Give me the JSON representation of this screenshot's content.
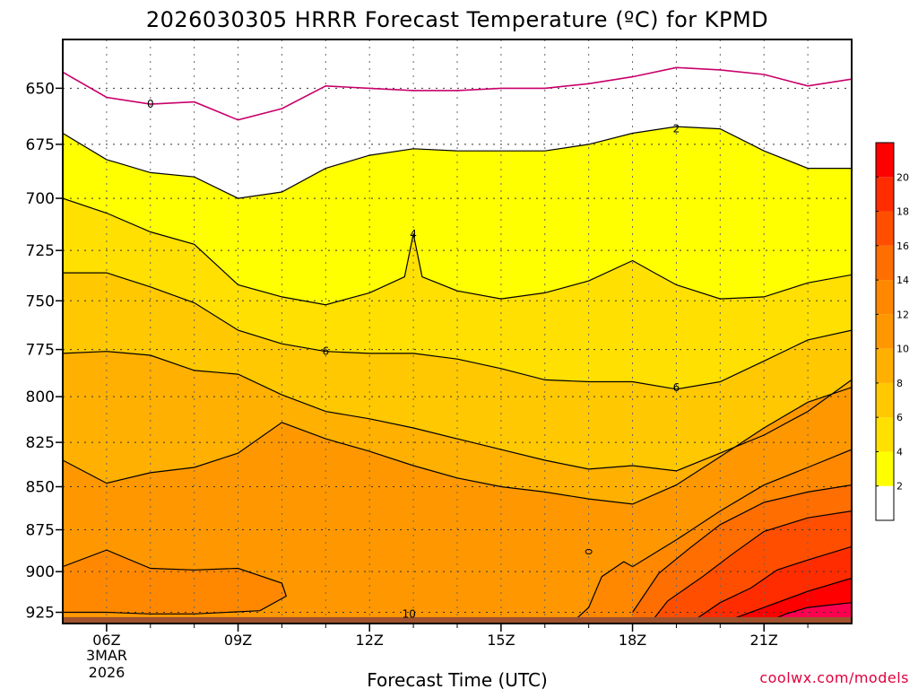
{
  "title": "2026030305 HRRR Forecast Temperature (ºC) for KPMD",
  "xlabel": "Forecast Time (UTC)",
  "credit": "coolwx.com/models",
  "date_label": [
    "3MAR",
    "2026"
  ],
  "colors": {
    "ground": "#a0522d",
    "bands": [
      "#ffffff",
      "#ffff00",
      "#ffe000",
      "#ffc800",
      "#ffb000",
      "#ff9800",
      "#ff8800",
      "#ff6e00",
      "#ff4e00",
      "#ff2c00",
      "#ff0000",
      "#ff0050"
    ],
    "zero_line": "#c8006a",
    "contour": "#000000",
    "grid": "#888888"
  },
  "chart_data": {
    "type": "heatmap",
    "title": "2026030305 HRRR Forecast Temperature (ºC) for KPMD",
    "xlabel": "Forecast Time (UTC)",
    "ylabel": "",
    "x_ticks": [
      {
        "hour": 6,
        "label": "06Z"
      },
      {
        "hour": 9,
        "label": "09Z"
      },
      {
        "hour": 12,
        "label": "12Z"
      },
      {
        "hour": 15,
        "label": "15Z"
      },
      {
        "hour": 18,
        "label": "18Z"
      },
      {
        "hour": 21,
        "label": "21Z"
      }
    ],
    "xlim": [
      5,
      23
    ],
    "y_ticks": [
      650,
      675,
      700,
      725,
      750,
      775,
      800,
      825,
      850,
      875,
      900,
      925
    ],
    "ylim": [
      932,
      629
    ],
    "y_scale": "log",
    "surface_pressure": 928,
    "colorbar": {
      "levels": [
        2,
        4,
        6,
        8,
        10,
        12,
        14,
        16,
        18,
        20
      ],
      "range": [
        0,
        22
      ],
      "placement": "right"
    },
    "grid": true,
    "contour_labels": [
      {
        "value": "0",
        "hour": 7,
        "pressure": 657
      },
      {
        "value": "2",
        "hour": 19,
        "pressure": 668
      },
      {
        "value": "4",
        "hour": 13,
        "pressure": 717
      },
      {
        "value": "6",
        "hour": 11,
        "pressure": 776
      },
      {
        "value": "6",
        "hour": 19,
        "pressure": 795
      },
      {
        "value": "10",
        "hour": 12.9,
        "pressure": 926
      }
    ],
    "isotherms": [
      {
        "value": 0,
        "points": [
          [
            5,
            643
          ],
          [
            6,
            654
          ],
          [
            7,
            657
          ],
          [
            8,
            656
          ],
          [
            9,
            664
          ],
          [
            10,
            659
          ],
          [
            11,
            649
          ],
          [
            12,
            650
          ],
          [
            13,
            651
          ],
          [
            14,
            651
          ],
          [
            15,
            650
          ],
          [
            16,
            650
          ],
          [
            17,
            648
          ],
          [
            18,
            645
          ],
          [
            19,
            641
          ],
          [
            20,
            642
          ],
          [
            21,
            644
          ],
          [
            22,
            649
          ],
          [
            23,
            646
          ]
        ]
      },
      {
        "value": 2,
        "points": [
          [
            5,
            670
          ],
          [
            6,
            682
          ],
          [
            7,
            688
          ],
          [
            8,
            690
          ],
          [
            9,
            700
          ],
          [
            10,
            697
          ],
          [
            11,
            686
          ],
          [
            12,
            680
          ],
          [
            13,
            677
          ],
          [
            14,
            678
          ],
          [
            15,
            678
          ],
          [
            16,
            678
          ],
          [
            17,
            675
          ],
          [
            18,
            670
          ],
          [
            19,
            667
          ],
          [
            20,
            668
          ],
          [
            21,
            678
          ],
          [
            22,
            686
          ],
          [
            23,
            686
          ]
        ]
      },
      {
        "value": 4,
        "points": [
          [
            5,
            700
          ],
          [
            6,
            707
          ],
          [
            7,
            716
          ],
          [
            8,
            722
          ],
          [
            9,
            742
          ],
          [
            10,
            748
          ],
          [
            11,
            752
          ],
          [
            12,
            746
          ],
          [
            12.8,
            738
          ],
          [
            13,
            717
          ],
          [
            13.2,
            738
          ],
          [
            14,
            745
          ],
          [
            15,
            749
          ],
          [
            16,
            746
          ],
          [
            17,
            740
          ],
          [
            18,
            730
          ],
          [
            18.5,
            736
          ],
          [
            19,
            742
          ],
          [
            20,
            749
          ],
          [
            21,
            748
          ],
          [
            22,
            741
          ],
          [
            23,
            737
          ]
        ]
      },
      {
        "value": 6,
        "points": [
          [
            5,
            736
          ],
          [
            6,
            736
          ],
          [
            7,
            743
          ],
          [
            8,
            751
          ],
          [
            9,
            765
          ],
          [
            10,
            772
          ],
          [
            11,
            776
          ],
          [
            12,
            777
          ],
          [
            13,
            777
          ],
          [
            14,
            780
          ],
          [
            15,
            785
          ],
          [
            16,
            791
          ],
          [
            17,
            792
          ],
          [
            18,
            792
          ],
          [
            19,
            796
          ],
          [
            20,
            792
          ],
          [
            21,
            781
          ],
          [
            22,
            770
          ],
          [
            23,
            765
          ]
        ]
      },
      {
        "value": 8,
        "points": [
          [
            5,
            777
          ],
          [
            6,
            776
          ],
          [
            7,
            778
          ],
          [
            8,
            786
          ],
          [
            9,
            788
          ],
          [
            10,
            799
          ],
          [
            11,
            808
          ],
          [
            12,
            812
          ],
          [
            13,
            817
          ],
          [
            14,
            823
          ],
          [
            15,
            829
          ],
          [
            16,
            835
          ],
          [
            17,
            840
          ],
          [
            18,
            838
          ],
          [
            19,
            841
          ],
          [
            20,
            831
          ],
          [
            21,
            821
          ],
          [
            22,
            808
          ],
          [
            23,
            791
          ]
        ]
      },
      {
        "value": 10,
        "points": [
          [
            5,
            835
          ],
          [
            6,
            848
          ],
          [
            7,
            842
          ],
          [
            8,
            839
          ],
          [
            9,
            831
          ],
          [
            10,
            814
          ],
          [
            11,
            823
          ],
          [
            12,
            830
          ],
          [
            13,
            838
          ],
          [
            14,
            845
          ],
          [
            15,
            850
          ],
          [
            16,
            853
          ],
          [
            17,
            857
          ],
          [
            18,
            860
          ],
          [
            19,
            849
          ],
          [
            20,
            833
          ],
          [
            21,
            817
          ],
          [
            22,
            803
          ],
          [
            23,
            795
          ]
        ]
      },
      {
        "value": 12,
        "points": [
          [
            5,
            897
          ],
          [
            6,
            887
          ],
          [
            7,
            898
          ],
          [
            8,
            899
          ],
          [
            9,
            898
          ],
          [
            10,
            907
          ],
          [
            10.1,
            915
          ],
          [
            9.5,
            924
          ],
          [
            8,
            926
          ],
          [
            7,
            926
          ],
          [
            6,
            925
          ],
          [
            5,
            925
          ]
        ]
      },
      {
        "value": 12,
        "points": [
          [
            16.6,
            932
          ],
          [
            17,
            922
          ],
          [
            17.3,
            903
          ],
          [
            17.8,
            894
          ],
          [
            18,
            897
          ],
          [
            19,
            881
          ],
          [
            20,
            864
          ],
          [
            21,
            849
          ],
          [
            22,
            839
          ],
          [
            23,
            829
          ]
        ]
      },
      {
        "value": 14,
        "points": [
          [
            18,
            925
          ],
          [
            18.6,
            901
          ],
          [
            19.3,
            886
          ],
          [
            20,
            872
          ],
          [
            21,
            859
          ],
          [
            22,
            853
          ],
          [
            23,
            849
          ]
        ]
      },
      {
        "value": 16,
        "points": [
          [
            18.4,
            932
          ],
          [
            18.8,
            918
          ],
          [
            19.6,
            903
          ],
          [
            20.3,
            889
          ],
          [
            21,
            876
          ],
          [
            22,
            868
          ],
          [
            23,
            864
          ]
        ]
      },
      {
        "value": 18,
        "points": [
          [
            19.3,
            932
          ],
          [
            20,
            919
          ],
          [
            20.7,
            910
          ],
          [
            21.3,
            899
          ],
          [
            22,
            893
          ],
          [
            23,
            885
          ]
        ]
      },
      {
        "value": 20,
        "points": [
          [
            20,
            932
          ],
          [
            21,
            922
          ],
          [
            22,
            912
          ],
          [
            23,
            904
          ]
        ]
      },
      {
        "value": 22,
        "points": [
          [
            21,
            932
          ],
          [
            21.5,
            926
          ],
          [
            22,
            922
          ],
          [
            23,
            919
          ]
        ]
      }
    ]
  }
}
